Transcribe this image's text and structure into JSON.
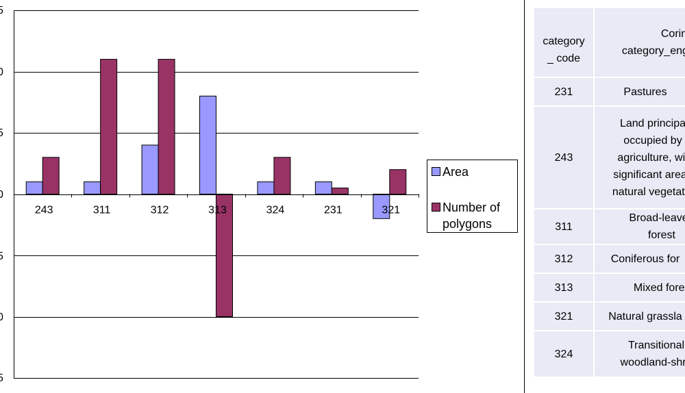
{
  "chart_data": {
    "type": "bar",
    "categories": [
      "243",
      "311",
      "312",
      "313",
      "324",
      "231",
      "321"
    ],
    "series": [
      {
        "name": "Area",
        "color": "#9999ff",
        "values": [
          1,
          1,
          4,
          8,
          1,
          1,
          -2
        ]
      },
      {
        "name": "Number of polygons",
        "color": "#993366",
        "values": [
          3,
          11,
          11,
          -10,
          3,
          0.5,
          2
        ]
      }
    ],
    "ylim": [
      -15,
      15
    ],
    "yticks": [
      "5",
      "0",
      "5",
      "0",
      "5",
      "0",
      "5"
    ],
    "grid": true,
    "legend_position": "right"
  },
  "legend": {
    "items": [
      {
        "label": "Area"
      },
      {
        "label": "Number of polygons"
      }
    ]
  },
  "table": {
    "header": {
      "code": "category_ code",
      "name": "Corine category_engli"
    },
    "rows": [
      {
        "code": "231",
        "name": "Pastures"
      },
      {
        "code": "243",
        "name": "Land principa occupied by agriculture, wit significant areas natural vegetatio"
      },
      {
        "code": "311",
        "name": "Broad-leaved forest"
      },
      {
        "code": "312",
        "name": "Coniferous for"
      },
      {
        "code": "313",
        "name": "Mixed forest"
      },
      {
        "code": "321",
        "name": "Natural grassla"
      },
      {
        "code": "324",
        "name": "Transitional woodland-shru"
      }
    ]
  }
}
